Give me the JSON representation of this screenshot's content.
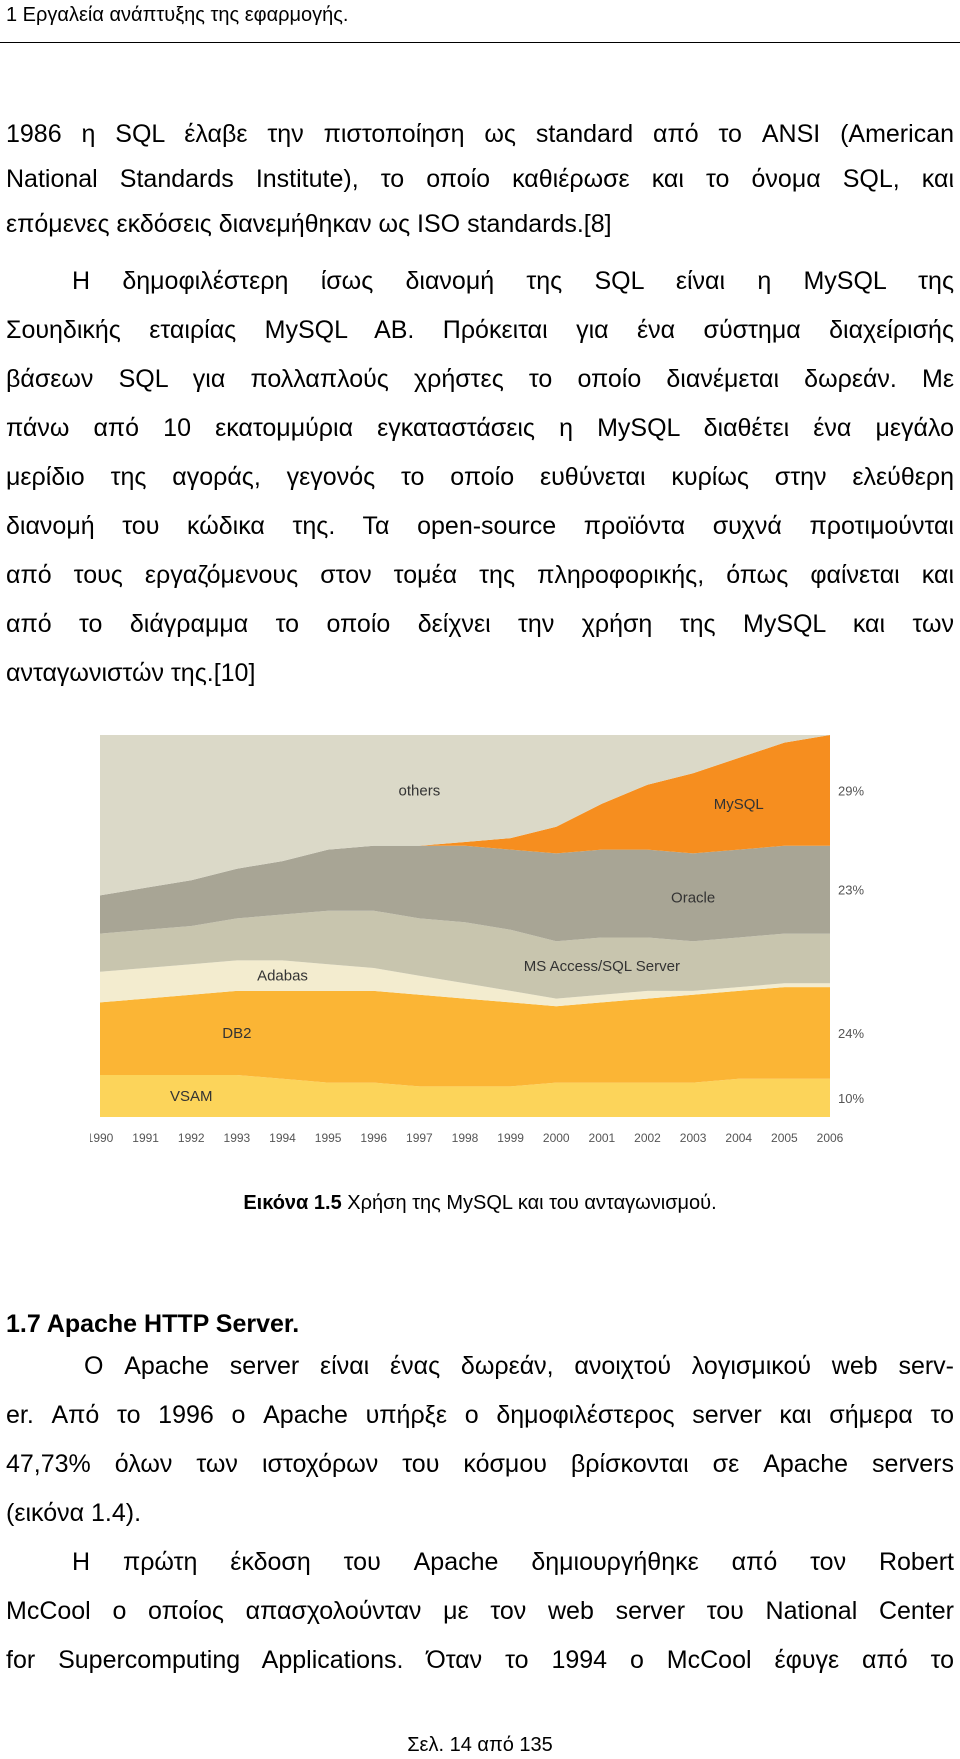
{
  "header": {
    "text": "1 Εργαλεία ανάπτυξης της εφαρμογής."
  },
  "intro_lines": [
    "1986 η SQL έλαβε την πιστοποίηση ως standard από το ANSI (American",
    "National Standards Institute), το οποίο καθιέρωσε και το όνομα SQL, και",
    "επόμενες εκδόσεις διανεμήθηκαν ως ISO standards.[8]"
  ],
  "mysql_para_lines": [
    "Η δημοφιλέστερη ίσως διανομή της SQL είναι η MySQL της",
    "Σουηδικής εταιρίας MySQL AB. Πρόκειται για ένα σύστημα διαχείρισής",
    "βάσεων SQL για πολλαπλούς χρήστες το οποίο διανέμεται δωρεάν. Με",
    "πάνω από 10 εκατομμύρια εγκαταστάσεις η MySQL διαθέτει ένα μεγάλο",
    "μερίδιο της αγοράς, γεγονός το οποίο ευθύνεται κυρίως στην ελεύθερη",
    "διανομή του κώδικα της. Τα open-source προϊόντα συχνά προτιμούνται",
    "από τους εργαζόμενους στον τομέα της πληροφορικής, όπως φαίνεται και",
    "από το διάγραμμα το οποίο δείχνει την χρήση της MySQL και των",
    "ανταγωνιστών της.[10]"
  ],
  "figure": {
    "caption_bold": "Εικόνα 1.5",
    "caption_rest": " Χρήση της MySQL και του ανταγωνισμού."
  },
  "chart_data": {
    "type": "area",
    "x": [
      "1990",
      "1991",
      "1992",
      "1993",
      "1994",
      "1995",
      "1996",
      "1997",
      "1998",
      "1999",
      "2000",
      "2001",
      "2002",
      "2003",
      "2004",
      "2005",
      "2006"
    ],
    "series": [
      {
        "name": "VSAM",
        "color": "#fcd45a",
        "values": [
          11,
          11,
          11,
          11,
          10,
          9,
          9,
          8,
          8,
          8,
          9,
          9,
          9,
          9,
          10,
          10,
          10
        ]
      },
      {
        "name": "DB2",
        "color": "#fbb535",
        "values": [
          19,
          20,
          21,
          22,
          23,
          24,
          24,
          24,
          23,
          22,
          20,
          21,
          22,
          23,
          23,
          24,
          24
        ]
      },
      {
        "name": "Adabas",
        "color": "#f3eccf",
        "values": [
          8,
          8,
          8,
          8,
          8,
          7,
          6,
          5,
          4,
          3,
          2,
          2,
          2,
          1,
          1,
          1,
          1
        ]
      },
      {
        "name": "MS Access/SQL Server",
        "color": "#c8c5ae",
        "values": [
          10,
          10,
          10,
          11,
          12,
          14,
          15,
          15,
          16,
          16,
          15,
          15,
          14,
          13,
          13,
          13,
          13
        ]
      },
      {
        "name": "Oracle",
        "color": "#a8a595",
        "values": [
          10,
          11,
          12,
          13,
          14,
          16,
          17,
          19,
          20,
          21,
          23,
          23,
          23,
          23,
          23,
          23,
          23
        ]
      },
      {
        "name": "MySQL",
        "color": "#f68e1f",
        "values": [
          0,
          0,
          0,
          0,
          0,
          0,
          0,
          0,
          1,
          3,
          7,
          12,
          17,
          21,
          24,
          27,
          29
        ]
      },
      {
        "name": "others",
        "color": "#dbd9c8",
        "values": [
          42,
          40,
          38,
          35,
          33,
          30,
          29,
          29,
          28,
          27,
          24,
          18,
          13,
          10,
          6,
          2,
          0
        ]
      }
    ],
    "right_labels": [
      "29%",
      "23%",
      "24%",
      "10%"
    ]
  },
  "section": {
    "heading": "1.7 Apache HTTP Server."
  },
  "apache_para1_lines": [
    "Ο Apache server είναι ένας δωρεάν, ανοιχτού λογισμικού web serv-",
    "er. Από το 1996 ο Apache υπήρξε ο δημοφιλέστερος server και σήμερα το",
    "47,73% όλων των ιστοχόρων του κόσμου βρίσκονται σε Apache servers",
    "(εικόνα 1.4)."
  ],
  "apache_para2_lines": [
    "Η πρώτη έκδοση του Apache δημιουργήθηκε από τον Robert",
    "McCool ο οποίος απασχολούνταν με τον web server του National Center",
    "for Supercomputing Applications. Όταν το 1994 ο McCool έφυγε από το"
  ],
  "footer": {
    "page": "Σελ. 14 από 135"
  }
}
